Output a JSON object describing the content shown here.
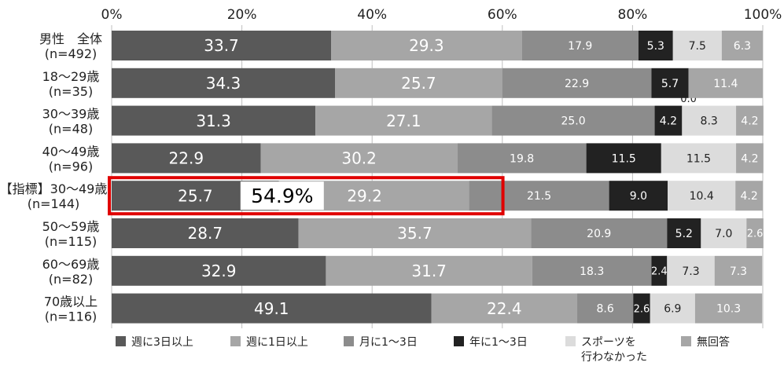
{
  "chart_data": {
    "type": "bar",
    "orientation": "horizontal",
    "stacked": true,
    "xlim": [
      0,
      100
    ],
    "x_ticks": [
      "0%",
      "20%",
      "40%",
      "60%",
      "80%",
      "100%"
    ],
    "grid": "vertical",
    "legend_position": "bottom",
    "categories": [
      [
        "男性　全体",
        "(n=492)"
      ],
      [
        "18～29歳",
        "(n=35)"
      ],
      [
        "30～39歳",
        "(n=48)"
      ],
      [
        "40～49歳",
        "(n=96)"
      ],
      [
        "【指標】30～49歳",
        "(n=144)"
      ],
      [
        "50～59歳",
        "(n=115)"
      ],
      [
        "60～69歳",
        "(n=82)"
      ],
      [
        "70歳以上",
        "(n=116)"
      ]
    ],
    "series": [
      {
        "name": "週に3日以上",
        "color": "#595959",
        "values": [
          33.7,
          34.3,
          31.3,
          22.9,
          25.7,
          28.7,
          32.9,
          49.1
        ]
      },
      {
        "name": "週に1日以上",
        "color": "#a6a6a6",
        "values": [
          29.3,
          25.7,
          27.1,
          30.2,
          29.2,
          35.7,
          31.7,
          22.4
        ]
      },
      {
        "name": "月に1～3日",
        "color": "#8c8c8c",
        "values": [
          17.9,
          22.9,
          25.0,
          19.8,
          21.5,
          20.9,
          18.3,
          8.6
        ]
      },
      {
        "name": "年に1～3日",
        "color": "#222222",
        "values": [
          5.3,
          5.7,
          4.2,
          11.5,
          9.0,
          5.2,
          2.4,
          2.6
        ]
      },
      {
        "name": "スポーツを\n行わなかった",
        "color": "#dcdcdc",
        "values": [
          7.5,
          0.0,
          8.3,
          11.5,
          10.4,
          7.0,
          7.3,
          6.9
        ]
      },
      {
        "name": "無回答",
        "color": "#a6a6a6",
        "values": [
          6.3,
          11.4,
          4.2,
          4.2,
          4.2,
          2.6,
          7.3,
          10.3
        ]
      }
    ],
    "highlight": {
      "category_index": 4,
      "label": "54.9%",
      "color": "#e00000"
    }
  }
}
